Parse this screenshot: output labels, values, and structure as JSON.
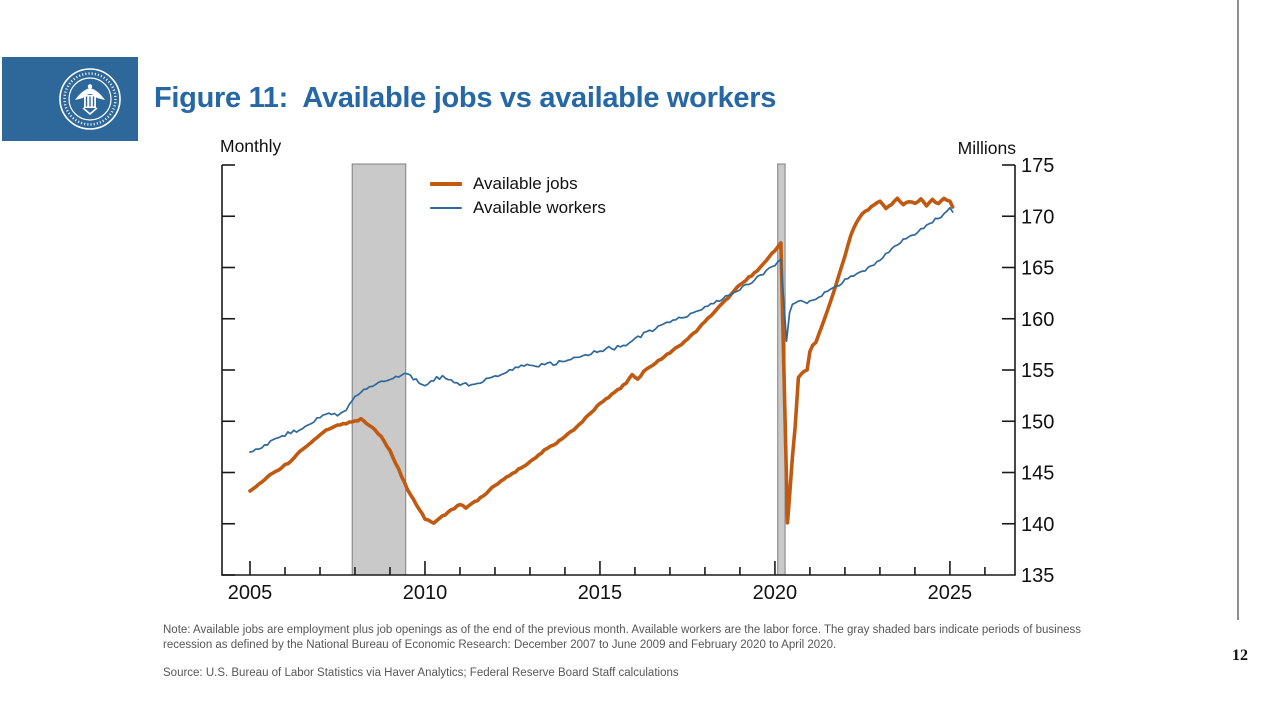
{
  "page": {
    "number": "12"
  },
  "header": {
    "title": "Figure 11:  Available jobs vs available workers",
    "title_color": "#2667a5",
    "logo": {
      "name": "federal-reserve-seal",
      "bg_color": "#2e689b"
    }
  },
  "chart_data": {
    "type": "line",
    "frequency_label": "Monthly",
    "units_label": "Millions",
    "ylim": [
      135,
      175
    ],
    "y_ticks": [
      135,
      140,
      145,
      150,
      155,
      160,
      165,
      170,
      175
    ],
    "x_tick_labels": [
      2005,
      2010,
      2015,
      2020,
      2025
    ],
    "x_minor_tick_start": 2005,
    "x_minor_tick_end": 2026,
    "x_axis_range": [
      2004.2,
      2026.86
    ],
    "grid": false,
    "legend_position": "top-left-inside",
    "recession_bands": [
      {
        "label": "December 2007 to June 2009",
        "start": 2007.92,
        "end": 2009.45
      },
      {
        "label": "February 2020 to April 2020",
        "start": 2020.08,
        "end": 2020.29
      }
    ],
    "recession_fill": "#c9c9c9",
    "recession_stroke": "#7f7f7f",
    "axis_color": "#1a1a1a",
    "series": [
      {
        "name": "Available jobs",
        "color": "#c05a11",
        "width": 3.6,
        "jitter": 0.12,
        "points": [
          [
            2005,
            143.2
          ],
          [
            2005.25,
            143.9
          ],
          [
            2005.5,
            144.6
          ],
          [
            2005.75,
            145.1
          ],
          [
            2006,
            145.7
          ],
          [
            2006.25,
            146.4
          ],
          [
            2006.5,
            147.3
          ],
          [
            2006.75,
            147.9
          ],
          [
            2007,
            148.7
          ],
          [
            2007.25,
            149.3
          ],
          [
            2007.5,
            149.7
          ],
          [
            2007.75,
            149.8
          ],
          [
            2008,
            150.0
          ],
          [
            2008.17,
            150.2
          ],
          [
            2008.33,
            149.8
          ],
          [
            2008.5,
            149.4
          ],
          [
            2008.75,
            148.5
          ],
          [
            2009,
            147.1
          ],
          [
            2009.25,
            145.3
          ],
          [
            2009.5,
            143.3
          ],
          [
            2009.75,
            141.9
          ],
          [
            2010,
            140.5
          ],
          [
            2010.25,
            140.0
          ],
          [
            2010.5,
            140.7
          ],
          [
            2010.75,
            141.3
          ],
          [
            2011,
            141.9
          ],
          [
            2011.17,
            141.5
          ],
          [
            2011.5,
            142.3
          ],
          [
            2011.75,
            143.0
          ],
          [
            2012,
            143.7
          ],
          [
            2012.25,
            144.3
          ],
          [
            2012.5,
            144.9
          ],
          [
            2012.75,
            145.5
          ],
          [
            2013,
            146.0
          ],
          [
            2013.25,
            146.7
          ],
          [
            2013.5,
            147.4
          ],
          [
            2013.75,
            147.9
          ],
          [
            2014,
            148.5
          ],
          [
            2014.25,
            149.2
          ],
          [
            2014.5,
            150.0
          ],
          [
            2014.75,
            150.9
          ],
          [
            2015,
            151.7
          ],
          [
            2015.25,
            152.4
          ],
          [
            2015.5,
            153.0
          ],
          [
            2015.75,
            153.7
          ],
          [
            2015.92,
            154.6
          ],
          [
            2016.08,
            154.1
          ],
          [
            2016.25,
            154.8
          ],
          [
            2016.5,
            155.5
          ],
          [
            2016.75,
            156.1
          ],
          [
            2017,
            156.7
          ],
          [
            2017.25,
            157.3
          ],
          [
            2017.5,
            158.0
          ],
          [
            2017.75,
            158.8
          ],
          [
            2018,
            159.7
          ],
          [
            2018.25,
            160.6
          ],
          [
            2018.5,
            161.5
          ],
          [
            2018.75,
            162.4
          ],
          [
            2019,
            163.3
          ],
          [
            2019.25,
            164.0
          ],
          [
            2019.5,
            164.7
          ],
          [
            2019.75,
            165.7
          ],
          [
            2020,
            166.7
          ],
          [
            2020.17,
            167.4
          ],
          [
            2020.36,
            140.1
          ],
          [
            2020.5,
            146.5
          ],
          [
            2020.58,
            149.5
          ],
          [
            2020.67,
            154.3
          ],
          [
            2020.83,
            154.8
          ],
          [
            2020.92,
            155.0
          ],
          [
            2021,
            156.8
          ],
          [
            2021.08,
            157.4
          ],
          [
            2021.17,
            157.7
          ],
          [
            2021.33,
            159.2
          ],
          [
            2021.5,
            160.8
          ],
          [
            2021.67,
            162.5
          ],
          [
            2021.83,
            164.3
          ],
          [
            2022,
            166.1
          ],
          [
            2022.17,
            168.2
          ],
          [
            2022.33,
            169.4
          ],
          [
            2022.5,
            170.3
          ],
          [
            2022.75,
            170.9
          ],
          [
            2023,
            171.5
          ],
          [
            2023.17,
            170.7
          ],
          [
            2023.33,
            171.2
          ],
          [
            2023.5,
            171.7
          ],
          [
            2023.67,
            171.1
          ],
          [
            2023.83,
            171.5
          ],
          [
            2024,
            171.3
          ],
          [
            2024.17,
            171.7
          ],
          [
            2024.33,
            171.0
          ],
          [
            2024.5,
            171.6
          ],
          [
            2024.67,
            171.2
          ],
          [
            2024.83,
            171.7
          ],
          [
            2025,
            171.5
          ],
          [
            2025.08,
            170.9
          ]
        ]
      },
      {
        "name": "Available workers",
        "color": "#2f689b",
        "width": 1.7,
        "jitter": 0.22,
        "points": [
          [
            2005,
            147.0
          ],
          [
            2005.25,
            147.4
          ],
          [
            2005.5,
            147.8
          ],
          [
            2005.75,
            148.2
          ],
          [
            2006,
            148.7
          ],
          [
            2006.25,
            149.0
          ],
          [
            2006.5,
            149.3
          ],
          [
            2006.75,
            149.9
          ],
          [
            2007,
            150.4
          ],
          [
            2007.25,
            150.7
          ],
          [
            2007.5,
            150.6
          ],
          [
            2007.75,
            151.1
          ],
          [
            2008,
            152.4
          ],
          [
            2008.25,
            153.0
          ],
          [
            2008.5,
            153.5
          ],
          [
            2008.75,
            153.9
          ],
          [
            2009,
            154.2
          ],
          [
            2009.25,
            154.4
          ],
          [
            2009.5,
            154.6
          ],
          [
            2009.75,
            154.0
          ],
          [
            2010,
            153.6
          ],
          [
            2010.25,
            154.1
          ],
          [
            2010.5,
            154.3
          ],
          [
            2010.75,
            153.9
          ],
          [
            2011,
            153.7
          ],
          [
            2011.25,
            153.5
          ],
          [
            2011.5,
            153.7
          ],
          [
            2011.75,
            154.1
          ],
          [
            2012,
            154.4
          ],
          [
            2012.25,
            154.7
          ],
          [
            2012.5,
            155.0
          ],
          [
            2012.75,
            155.3
          ],
          [
            2013,
            155.4
          ],
          [
            2013.25,
            155.5
          ],
          [
            2013.5,
            155.6
          ],
          [
            2013.75,
            155.7
          ],
          [
            2014,
            155.9
          ],
          [
            2014.25,
            156.1
          ],
          [
            2014.5,
            156.3
          ],
          [
            2014.75,
            156.6
          ],
          [
            2015,
            156.9
          ],
          [
            2015.25,
            157.1
          ],
          [
            2015.5,
            157.2
          ],
          [
            2015.75,
            157.5
          ],
          [
            2016,
            158.0
          ],
          [
            2016.25,
            158.5
          ],
          [
            2016.5,
            158.9
          ],
          [
            2016.75,
            159.3
          ],
          [
            2017,
            159.7
          ],
          [
            2017.25,
            160.0
          ],
          [
            2017.5,
            160.3
          ],
          [
            2017.75,
            160.7
          ],
          [
            2018,
            161.1
          ],
          [
            2018.25,
            161.6
          ],
          [
            2018.5,
            162.0
          ],
          [
            2018.75,
            162.4
          ],
          [
            2019,
            162.9
          ],
          [
            2019.25,
            163.4
          ],
          [
            2019.5,
            164.0
          ],
          [
            2019.75,
            164.6
          ],
          [
            2020,
            165.3
          ],
          [
            2020.17,
            165.8
          ],
          [
            2020.33,
            157.8
          ],
          [
            2020.42,
            160.6
          ],
          [
            2020.5,
            161.5
          ],
          [
            2020.67,
            161.8
          ],
          [
            2020.83,
            161.5
          ],
          [
            2021,
            161.7
          ],
          [
            2021.25,
            162.2
          ],
          [
            2021.5,
            162.6
          ],
          [
            2021.75,
            163.1
          ],
          [
            2022,
            163.8
          ],
          [
            2022.25,
            164.2
          ],
          [
            2022.5,
            164.6
          ],
          [
            2022.75,
            165.1
          ],
          [
            2023,
            165.8
          ],
          [
            2023.25,
            166.5
          ],
          [
            2023.5,
            167.3
          ],
          [
            2023.75,
            167.9
          ],
          [
            2024,
            168.3
          ],
          [
            2024.25,
            168.9
          ],
          [
            2024.5,
            169.5
          ],
          [
            2024.75,
            170.0
          ],
          [
            2025,
            170.8
          ],
          [
            2025.08,
            170.4
          ]
        ]
      }
    ]
  },
  "footnotes": {
    "note": "Note: Available jobs are employment plus job openings as of the end of the previous month. Available workers are the labor force. The gray shaded bars indicate periods of business recession as defined by the National Bureau of Economic Research: December 2007 to June 2009 and February 2020 to April 2020.",
    "source": "Source: U.S. Bureau of Labor Statistics via Haver Analytics; Federal Reserve Board Staff calculations"
  }
}
